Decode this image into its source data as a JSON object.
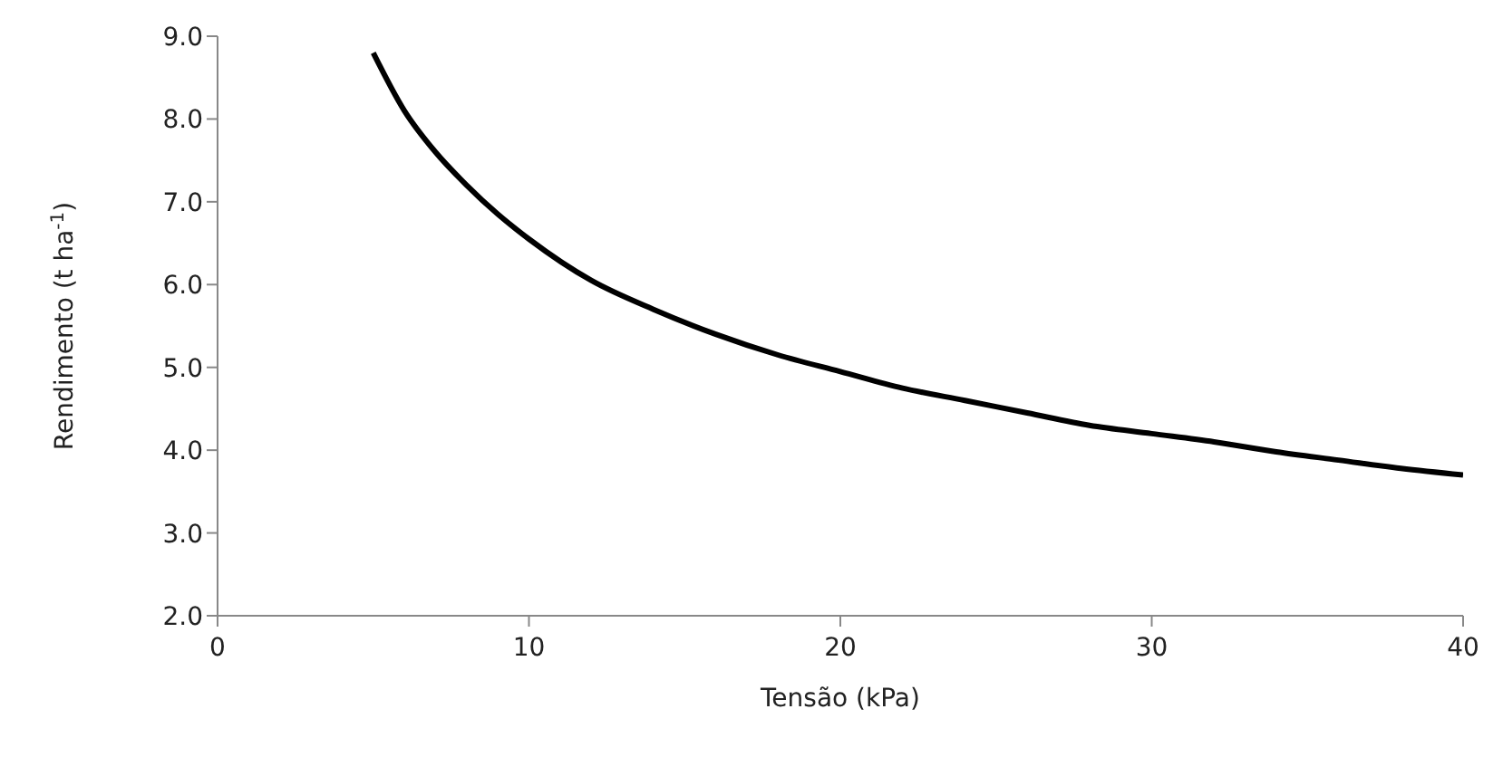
{
  "chart_data": {
    "type": "line",
    "xlabel": "Tensão (kPa)",
    "ylabel": "Rendimento (t ha$^{-1}$)",
    "xlim": [
      0,
      40
    ],
    "xticks": [
      0,
      10,
      20,
      30,
      40
    ],
    "ylim": [
      2,
      9
    ],
    "yticks": [
      {
        "value": 2,
        "label": "2.0"
      },
      {
        "value": 3,
        "label": "3.0"
      },
      {
        "value": 4,
        "label": "4.0"
      },
      {
        "value": 5,
        "label": "5.0"
      },
      {
        "value": 6,
        "label": "6.0"
      },
      {
        "value": 7,
        "label": "7.0"
      },
      {
        "value": 8,
        "label": "8.0"
      },
      {
        "value": 9,
        "label": "9.0"
      }
    ],
    "x": [
      5,
      6,
      7,
      8,
      9,
      10,
      12,
      14,
      16,
      18,
      20,
      22,
      24,
      26,
      28,
      30,
      32,
      34,
      36,
      38,
      40
    ],
    "series": [
      {
        "color": "#000000",
        "values": [
          8.8,
          8.1,
          7.6,
          7.2,
          6.85,
          6.55,
          6.05,
          5.7,
          5.4,
          5.15,
          4.95,
          4.75,
          4.6,
          4.45,
          4.3,
          4.2,
          4.1,
          3.98,
          3.88,
          3.78,
          3.7
        ]
      }
    ],
    "grid": false,
    "legend": false,
    "marker": "none",
    "line_style": "solid"
  }
}
